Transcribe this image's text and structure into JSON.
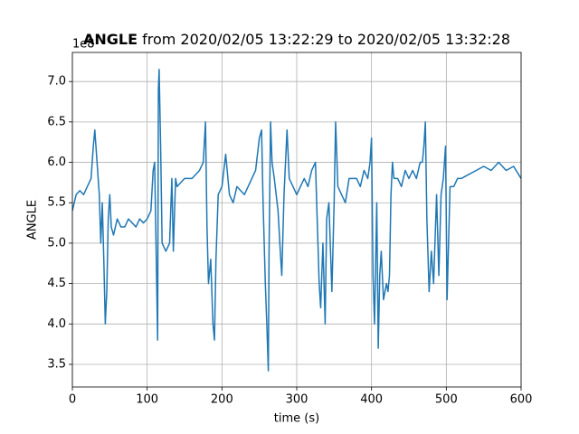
{
  "chart_data": {
    "type": "line",
    "title_bold": "ANGLE",
    "title_rest": "from 2020/02/05 13:22:29 to 2020/02/05 13:32:28",
    "x_label": "time (s)",
    "y_label": "ANGLE",
    "y_offset_label": "1e8",
    "color": "#1f77b4",
    "grid": true,
    "xlim": [
      0,
      600
    ],
    "ylim": [
      3.22,
      7.36
    ],
    "xticks": [
      0,
      100,
      200,
      300,
      400,
      500,
      600
    ],
    "yticks": [
      {
        "value": 3.5,
        "label": "3.5"
      },
      {
        "value": 4,
        "label": "4.0"
      },
      {
        "value": 4.5,
        "label": "4.5"
      },
      {
        "value": 5,
        "label": "5.0"
      },
      {
        "value": 5.5,
        "label": "5.5"
      },
      {
        "value": 6,
        "label": "6.0"
      },
      {
        "value": 6.5,
        "label": "6.5"
      },
      {
        "value": 7,
        "label": "7.0"
      }
    ],
    "x": [
      0,
      5,
      10,
      15,
      20,
      25,
      28,
      30,
      33,
      36,
      38,
      40,
      42,
      44,
      46,
      48,
      50,
      52,
      55,
      60,
      65,
      70,
      75,
      80,
      85,
      90,
      95,
      100,
      105,
      108,
      110,
      112,
      114,
      115,
      116,
      118,
      120,
      125,
      130,
      133,
      135,
      138,
      140,
      150,
      160,
      170,
      175,
      178,
      180,
      182,
      185,
      188,
      190,
      192,
      195,
      200,
      205,
      210,
      215,
      220,
      230,
      240,
      245,
      250,
      253,
      255,
      258,
      260,
      262,
      263,
      265,
      267,
      270,
      275,
      278,
      280,
      283,
      287,
      290,
      295,
      300,
      305,
      310,
      315,
      320,
      325,
      327,
      330,
      332,
      335,
      338,
      340,
      343,
      347,
      350,
      352,
      355,
      360,
      365,
      370,
      380,
      385,
      390,
      395,
      398,
      400,
      402,
      404,
      407,
      409,
      411,
      413,
      416,
      420,
      422,
      424,
      426,
      428,
      430,
      435,
      440,
      445,
      450,
      455,
      460,
      465,
      468,
      470,
      472,
      474,
      477,
      480,
      483,
      487,
      490,
      493,
      496,
      499,
      501,
      503,
      505,
      510,
      515,
      520,
      530,
      540,
      550,
      560,
      570,
      575,
      580,
      590,
      600
    ],
    "values": [
      5.4,
      5.6,
      5.65,
      5.6,
      5.7,
      5.8,
      6.2,
      6.4,
      6.0,
      5.6,
      5.0,
      5.5,
      4.8,
      4.0,
      4.4,
      5.3,
      5.6,
      5.2,
      5.1,
      5.3,
      5.2,
      5.2,
      5.3,
      5.25,
      5.2,
      5.3,
      5.25,
      5.3,
      5.4,
      5.9,
      6.0,
      4.9,
      3.8,
      6.9,
      7.15,
      6.2,
      5.0,
      4.9,
      5.0,
      5.8,
      4.9,
      5.8,
      5.7,
      5.8,
      5.8,
      5.9,
      6.0,
      6.5,
      5.2,
      4.5,
      4.8,
      4.0,
      3.8,
      4.8,
      5.6,
      5.7,
      6.1,
      5.6,
      5.5,
      5.7,
      5.6,
      5.8,
      5.9,
      6.3,
      6.4,
      5.5,
      4.5,
      4.0,
      3.42,
      4.9,
      6.5,
      6.0,
      5.8,
      5.4,
      4.9,
      4.6,
      5.6,
      6.4,
      5.8,
      5.7,
      5.6,
      5.7,
      5.8,
      5.7,
      5.9,
      6.0,
      5.4,
      4.5,
      4.2,
      5.0,
      4.0,
      5.3,
      5.5,
      4.4,
      5.5,
      6.5,
      5.7,
      5.6,
      5.5,
      5.8,
      5.8,
      5.7,
      5.9,
      5.8,
      6.0,
      6.3,
      4.6,
      4.0,
      5.5,
      3.7,
      4.6,
      4.9,
      4.3,
      4.5,
      4.4,
      4.6,
      5.6,
      6.0,
      5.8,
      5.8,
      5.7,
      5.9,
      5.8,
      5.9,
      5.8,
      6.0,
      6.0,
      6.2,
      6.5,
      5.3,
      4.4,
      4.9,
      4.5,
      5.6,
      4.6,
      5.6,
      5.8,
      6.2,
      4.3,
      5.0,
      5.7,
      5.7,
      5.8,
      5.8,
      5.85,
      5.9,
      5.95,
      5.9,
      6.0,
      5.95,
      5.9,
      5.95,
      5.8
    ]
  }
}
